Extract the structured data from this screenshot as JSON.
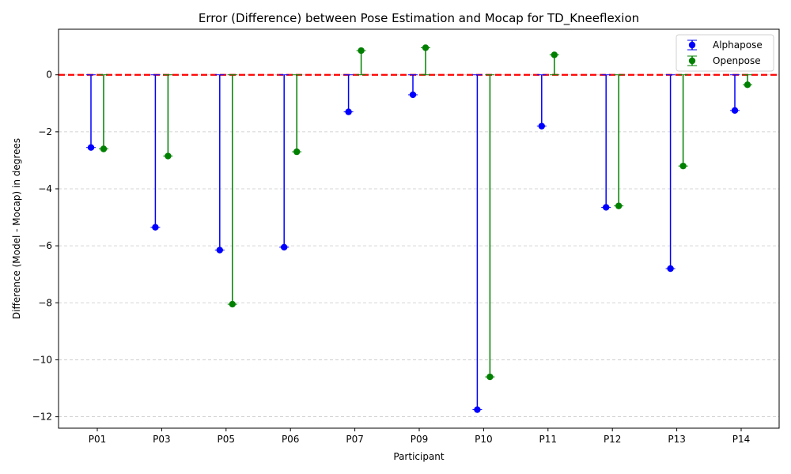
{
  "chart_data": {
    "type": "scatter",
    "title": "Error (Difference) between Pose Estimation and Mocap for TD_Kneeflexion",
    "xlabel": "Participant",
    "ylabel": "Difference (Model - Mocap) in degrees",
    "categories": [
      "P01",
      "P03",
      "P05",
      "P06",
      "P07",
      "P09",
      "P10",
      "P11",
      "P12",
      "P13",
      "P14"
    ],
    "ylim": [
      -12.4,
      1.6
    ],
    "yticks": [
      0,
      -2,
      -4,
      -6,
      -8,
      -10,
      -12
    ],
    "ytick_labels": [
      "0",
      "−2",
      "−4",
      "−6",
      "−8",
      "−10",
      "−12"
    ],
    "grid": "horizontal dashed",
    "reference_line": {
      "y": 0,
      "color": "#ff0000",
      "style": "dashed"
    },
    "legend_position": "top-right",
    "series": [
      {
        "name": "Alphapose",
        "color": "#0000ff",
        "values": [
          -2.55,
          -5.35,
          -6.15,
          -6.05,
          -1.3,
          -0.7,
          -11.75,
          -1.8,
          -4.65,
          -6.8,
          -1.25
        ]
      },
      {
        "name": "Openpose",
        "color": "#008000",
        "values": [
          -2.6,
          -2.85,
          -8.05,
          -2.7,
          0.85,
          0.95,
          -10.6,
          0.7,
          -4.6,
          -3.2,
          -0.35
        ]
      }
    ]
  }
}
